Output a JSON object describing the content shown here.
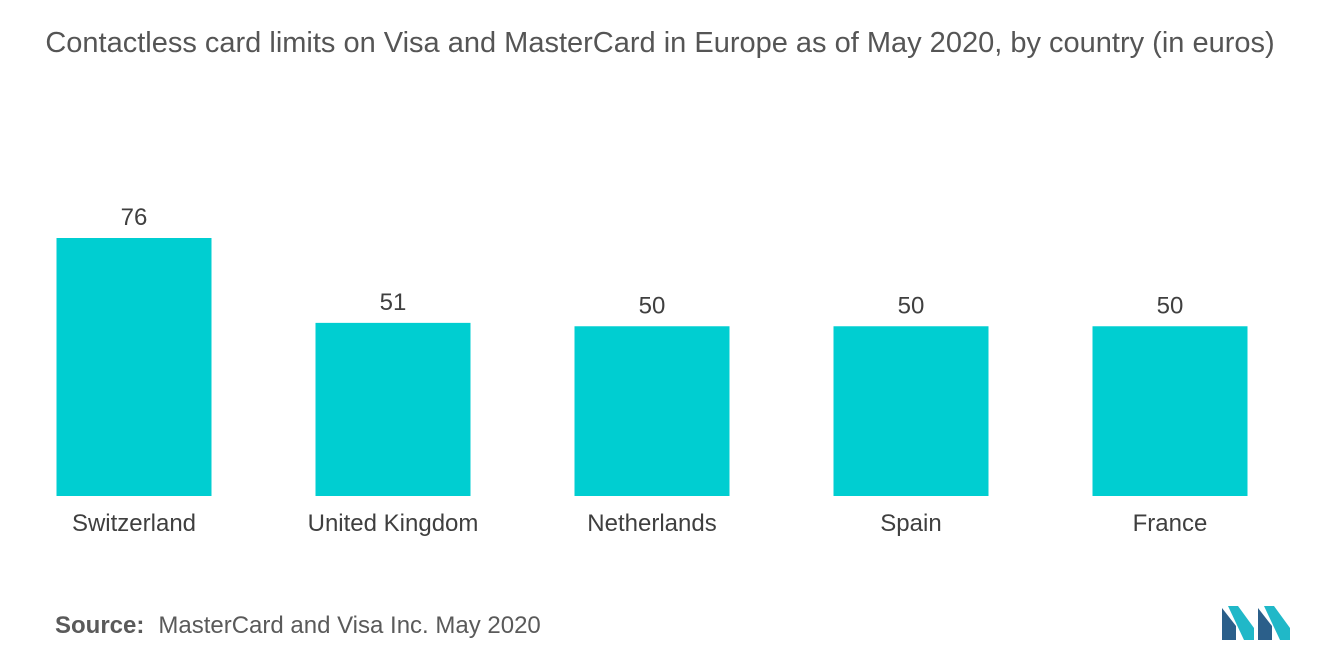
{
  "chart_data": {
    "type": "bar",
    "title": "Contactless card limits on Visa and MasterCard in Europe as of May 2020, by country (in euros)",
    "categories": [
      "Switzerland",
      "United Kingdom",
      "Netherlands",
      "Spain",
      "France"
    ],
    "values": [
      76,
      51,
      50,
      50,
      50
    ],
    "xlabel": "",
    "ylabel": "",
    "ylim": [
      0,
      76
    ],
    "grid": false,
    "legend": "none",
    "bar_color": "#00ced1",
    "data_labels": true
  },
  "source": {
    "label": "Source:",
    "text": "MasterCard and Visa Inc. May 2020"
  },
  "colors": {
    "bar": "#00ced1",
    "logo_dark": "#2b5f8a",
    "logo_light": "#20b8c8"
  }
}
